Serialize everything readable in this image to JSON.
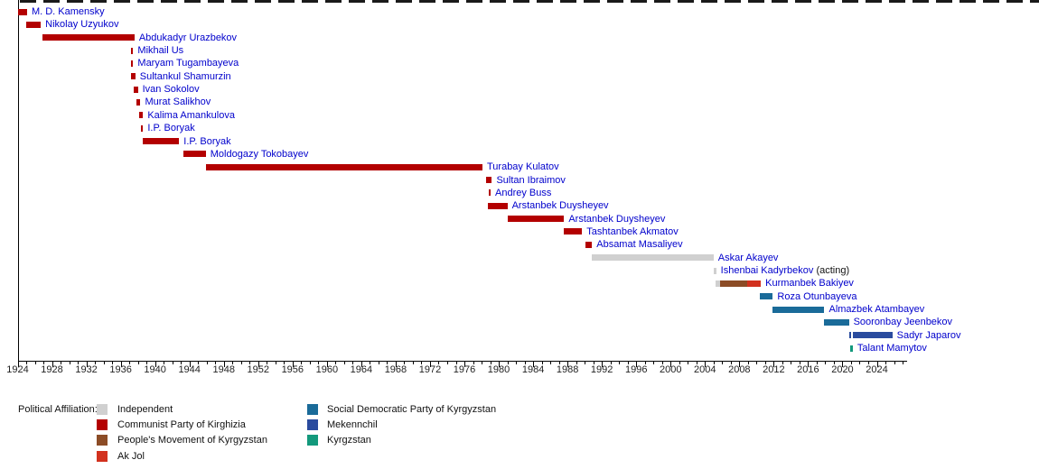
{
  "chart_data": {
    "type": "bar",
    "variant": "horizontal-timeline-gantt",
    "description": "Timeline of heads of state of Kyrgyzstan colored by political affiliation",
    "x_axis": {
      "min": 1924,
      "max": 2027.5,
      "major_tick_interval": 4,
      "minor_tick_interval": 1,
      "tick_labels": [
        "1924",
        "1928",
        "1932",
        "1936",
        "1940",
        "1944",
        "1948",
        "1952",
        "1956",
        "1960",
        "1964",
        "1968",
        "1972",
        "1976",
        "1980",
        "1984",
        "1988",
        "1992",
        "1996",
        "2000",
        "2004",
        "2008",
        "2012",
        "2016",
        "2020",
        "2024"
      ]
    },
    "colors": {
      "independent": "#d0d0d0",
      "communist": "#b30000",
      "peoples_movement": "#8c4c26",
      "ak_jol": "#d2311e",
      "sdpk": "#1a6b99",
      "mekennchil": "#2a4b9e",
      "kyrgzstan": "#13997c",
      "label_link": "#0000cc",
      "axis": "#000000"
    },
    "people": [
      {
        "name": "M. D. Kamensky",
        "suffix": "",
        "segments": [
          {
            "party": "communist",
            "start": 1924.0,
            "end": 1925.1
          }
        ]
      },
      {
        "name": "Nikolay Uzyukov",
        "suffix": "",
        "segments": [
          {
            "party": "communist",
            "start": 1925.0,
            "end": 1926.7
          }
        ]
      },
      {
        "name": "Abdukadyr Urazbekov",
        "suffix": "",
        "segments": [
          {
            "party": "communist",
            "start": 1926.9,
            "end": 1937.6
          }
        ]
      },
      {
        "name": "Mikhail Us",
        "suffix": "",
        "segments": [
          {
            "party": "communist",
            "start": 1937.2,
            "end": 1937.45
          }
        ]
      },
      {
        "name": "Maryam Tugambayeva",
        "suffix": "",
        "segments": [
          {
            "party": "communist",
            "start": 1937.2,
            "end": 1937.45
          }
        ]
      },
      {
        "name": "Sultankul Shamurzin",
        "suffix": "",
        "segments": [
          {
            "party": "communist",
            "start": 1937.2,
            "end": 1937.7
          }
        ]
      },
      {
        "name": "Ivan Sokolov",
        "suffix": "",
        "segments": [
          {
            "party": "communist",
            "start": 1937.5,
            "end": 1938.0
          }
        ]
      },
      {
        "name": "Murat Salikhov",
        "suffix": "",
        "segments": [
          {
            "party": "communist",
            "start": 1937.8,
            "end": 1938.3
          }
        ]
      },
      {
        "name": "Kalima Amankulova",
        "suffix": "",
        "segments": [
          {
            "party": "communist",
            "start": 1938.1,
            "end": 1938.6
          }
        ]
      },
      {
        "name": "I.P. Boryak",
        "suffix": "",
        "segments": [
          {
            "party": "communist",
            "start": 1938.35,
            "end": 1938.6
          }
        ]
      },
      {
        "name": "I.P. Boryak",
        "suffix": "",
        "segments": [
          {
            "party": "communist",
            "start": 1938.6,
            "end": 1942.8
          }
        ]
      },
      {
        "name": "Moldogazy Tokobayev",
        "suffix": "",
        "segments": [
          {
            "party": "communist",
            "start": 1943.3,
            "end": 1945.9
          }
        ]
      },
      {
        "name": "Turabay Kulatov",
        "suffix": "",
        "segments": [
          {
            "party": "communist",
            "start": 1945.9,
            "end": 1978.1
          }
        ]
      },
      {
        "name": "Sultan Ibraimov",
        "suffix": "",
        "segments": [
          {
            "party": "communist",
            "start": 1978.5,
            "end": 1979.2
          }
        ]
      },
      {
        "name": "Andrey Buss",
        "suffix": "",
        "segments": [
          {
            "party": "communist",
            "start": 1978.85,
            "end": 1979.05
          }
        ]
      },
      {
        "name": "Arstanbek Duysheyev",
        "suffix": "",
        "segments": [
          {
            "party": "communist",
            "start": 1978.7,
            "end": 1981.0
          }
        ]
      },
      {
        "name": "Arstanbek Duysheyev",
        "suffix": "",
        "segments": [
          {
            "party": "communist",
            "start": 1981.0,
            "end": 1987.6
          }
        ]
      },
      {
        "name": "Tashtanbek Akmatov",
        "suffix": "",
        "segments": [
          {
            "party": "communist",
            "start": 1987.6,
            "end": 1989.7
          }
        ]
      },
      {
        "name": "Absamat Masaliyev",
        "suffix": "",
        "segments": [
          {
            "party": "communist",
            "start": 1990.1,
            "end": 1990.85
          }
        ]
      },
      {
        "name": "Askar Akayev",
        "suffix": "",
        "segments": [
          {
            "party": "independent",
            "start": 1990.8,
            "end": 2005.0
          }
        ]
      },
      {
        "name": "Ishenbai Kadyrbekov",
        "suffix": " (acting)",
        "segments": [
          {
            "party": "independent",
            "start": 2005.05,
            "end": 2005.3
          }
        ]
      },
      {
        "name": "Kurmanbek Bakiyev",
        "suffix": "",
        "segments": [
          {
            "party": "independent",
            "start": 2005.2,
            "end": 2005.8
          },
          {
            "party": "peoples_movement",
            "start": 2005.8,
            "end": 2008.9
          },
          {
            "party": "ak_jol",
            "start": 2008.9,
            "end": 2010.5
          }
        ]
      },
      {
        "name": "Roza Otunbayeva",
        "suffix": "",
        "segments": [
          {
            "party": "sdpk",
            "start": 2010.4,
            "end": 2011.9
          }
        ]
      },
      {
        "name": "Almazbek Atambayev",
        "suffix": "",
        "segments": [
          {
            "party": "sdpk",
            "start": 2011.9,
            "end": 2017.9
          }
        ]
      },
      {
        "name": "Sooronbay Jeenbekov",
        "suffix": "",
        "segments": [
          {
            "party": "sdpk",
            "start": 2017.9,
            "end": 2020.75
          }
        ]
      },
      {
        "name": "Sadyr Japarov",
        "suffix": "",
        "segments": [
          {
            "party": "mekennchil",
            "start": 2020.75,
            "end": 2020.95
          },
          {
            "party": "mekennchil",
            "start": 2021.2,
            "end": 2025.8
          }
        ]
      },
      {
        "name": "Talant Mamytov",
        "suffix": "",
        "segments": [
          {
            "party": "kyrgzstan",
            "start": 2020.9,
            "end": 2021.2
          }
        ]
      }
    ],
    "legend": {
      "title": "Political Affiliation:",
      "columns": [
        [
          {
            "party": "independent",
            "label": "Independent"
          },
          {
            "party": "communist",
            "label": "Communist Party of Kirghizia"
          },
          {
            "party": "peoples_movement",
            "label": "People's Movement of Kyrgyzstan"
          },
          {
            "party": "ak_jol",
            "label": "Ak Jol"
          }
        ],
        [
          {
            "party": "sdpk",
            "label": "Social Democratic Party of Kyrgyzstan"
          },
          {
            "party": "mekennchil",
            "label": "Mekennchil"
          },
          {
            "party": "kyrgzstan",
            "label": "Kyrgzstan"
          }
        ]
      ]
    }
  }
}
